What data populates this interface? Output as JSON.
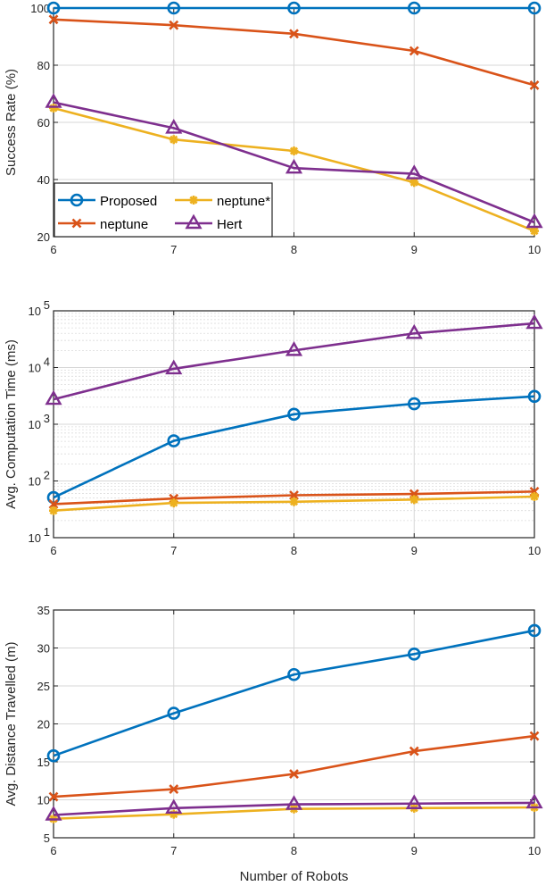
{
  "chart_data": [
    {
      "type": "line",
      "title": "",
      "xlabel": "",
      "ylabel": "Success Rate (%)",
      "x": [
        6,
        7,
        8,
        9,
        10
      ],
      "xticks": [
        "6",
        "7",
        "8",
        "9",
        "10"
      ],
      "ylim": [
        20,
        100
      ],
      "yscale": "linear",
      "yticks": [
        "20",
        "40",
        "60",
        "80",
        "100"
      ],
      "grid": true,
      "legend": {
        "placement": "bottom-left",
        "columns": 2
      },
      "series": [
        {
          "name": "Proposed",
          "color": "#0072BD",
          "marker": "circle",
          "values": [
            100,
            100,
            100,
            100,
            100
          ]
        },
        {
          "name": "neptune",
          "color": "#D95319",
          "marker": "x",
          "values": [
            96,
            94,
            91,
            85,
            73
          ]
        },
        {
          "name": "neptune*",
          "color": "#EDB120",
          "marker": "asterisk",
          "values": [
            65,
            54,
            50,
            39,
            22
          ]
        },
        {
          "name": "Hert",
          "color": "#7E2F8E",
          "marker": "triangle",
          "values": [
            67,
            58,
            44,
            42,
            25
          ]
        }
      ]
    },
    {
      "type": "line",
      "title": "",
      "xlabel": "",
      "ylabel": "Avg. Computation Time (ms)",
      "x": [
        6,
        7,
        8,
        9,
        10
      ],
      "xticks": [
        "6",
        "7",
        "8",
        "9",
        "10"
      ],
      "ylim": [
        10,
        100000
      ],
      "yscale": "log",
      "yticks": [
        {
          "base": "10",
          "exp": "1"
        },
        {
          "base": "10",
          "exp": "2"
        },
        {
          "base": "10",
          "exp": "3"
        },
        {
          "base": "10",
          "exp": "4"
        },
        {
          "base": "10",
          "exp": "5"
        }
      ],
      "grid": true,
      "minor_grid": true,
      "series": [
        {
          "name": "Proposed",
          "color": "#0072BD",
          "marker": "circle",
          "values": [
            51,
            510,
            1500,
            2300,
            3100
          ]
        },
        {
          "name": "neptune",
          "color": "#D95319",
          "marker": "x",
          "values": [
            39,
            49,
            56,
            59,
            65
          ]
        },
        {
          "name": "neptune*",
          "color": "#EDB120",
          "marker": "asterisk",
          "values": [
            30,
            41,
            43,
            47,
            53
          ]
        },
        {
          "name": "Hert",
          "color": "#7E2F8E",
          "marker": "triangle",
          "values": [
            2750,
            9500,
            20000,
            40000,
            60000
          ]
        }
      ]
    },
    {
      "type": "line",
      "title": "",
      "xlabel": "Number of Robots",
      "ylabel": "Avg. Distance Travelled (m)",
      "x": [
        6,
        7,
        8,
        9,
        10
      ],
      "xticks": [
        "6",
        "7",
        "8",
        "9",
        "10"
      ],
      "ylim": [
        5,
        35
      ],
      "yscale": "linear",
      "yticks": [
        "5",
        "10",
        "15",
        "20",
        "25",
        "30",
        "35"
      ],
      "grid": true,
      "series": [
        {
          "name": "Proposed",
          "color": "#0072BD",
          "marker": "circle",
          "values": [
            15.8,
            21.4,
            26.5,
            29.2,
            32.3
          ]
        },
        {
          "name": "neptune",
          "color": "#D95319",
          "marker": "x",
          "values": [
            10.4,
            11.4,
            13.4,
            16.4,
            18.4
          ]
        },
        {
          "name": "neptune*",
          "color": "#EDB120",
          "marker": "asterisk",
          "values": [
            7.5,
            8.1,
            8.8,
            8.9,
            9.0
          ]
        },
        {
          "name": "Hert",
          "color": "#7E2F8E",
          "marker": "triangle",
          "values": [
            8.0,
            8.9,
            9.4,
            9.5,
            9.6
          ]
        }
      ]
    }
  ]
}
